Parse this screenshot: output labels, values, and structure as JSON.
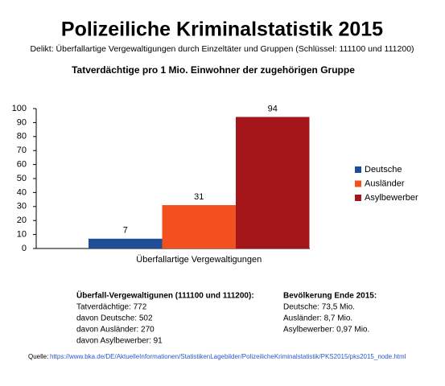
{
  "chart_data": {
    "type": "bar",
    "page_title": "Polizeiliche Kriminalstatistik 2015",
    "subtitle": "Delikt: Überfallartige Vergewaltigungen durch Einzeltäter und Gruppen (Schlüssel: 111100 und 111200)",
    "title": "Tatverdächtige pro 1 Mio. Einwohner der zugehörigen Gruppe",
    "categories": [
      "Überfallartige Vergewaltigungen"
    ],
    "series": [
      {
        "name": "Deutsche",
        "color": "#1f4e96",
        "values": [
          7
        ]
      },
      {
        "name": "Ausländer",
        "color": "#f2501f",
        "values": [
          31
        ]
      },
      {
        "name": "Asylbewerber",
        "color": "#a5161a",
        "values": [
          94
        ]
      }
    ],
    "ylim": [
      0,
      100
    ],
    "yticks": [
      0,
      10,
      20,
      30,
      40,
      50,
      60,
      70,
      80,
      90,
      100
    ],
    "grid": false,
    "legend": "right",
    "data_labels": true
  },
  "notes": {
    "left": {
      "heading": "Überfall-Vergewaltigunen (111100 und 111200):",
      "lines": [
        "Tatverdächtige: 772",
        "davon Deutsche: 502",
        "davon Ausländer: 270",
        "davon Asylbewerber: 91"
      ]
    },
    "right": {
      "heading": "Bevölkerung Ende 2015:",
      "lines": [
        "Deutsche: 73,5 Mio.",
        "Ausländer: 8,7 Mio.",
        "Asylbewerber: 0,97 Mio."
      ]
    }
  },
  "source": {
    "label": "Quelle:",
    "url": "https://www.bka.de/DE/AktuelleInformationen/StatistikenLagebilder/PolizeilicheKriminalstatistik/PKS2015/pks2015_node.html"
  }
}
